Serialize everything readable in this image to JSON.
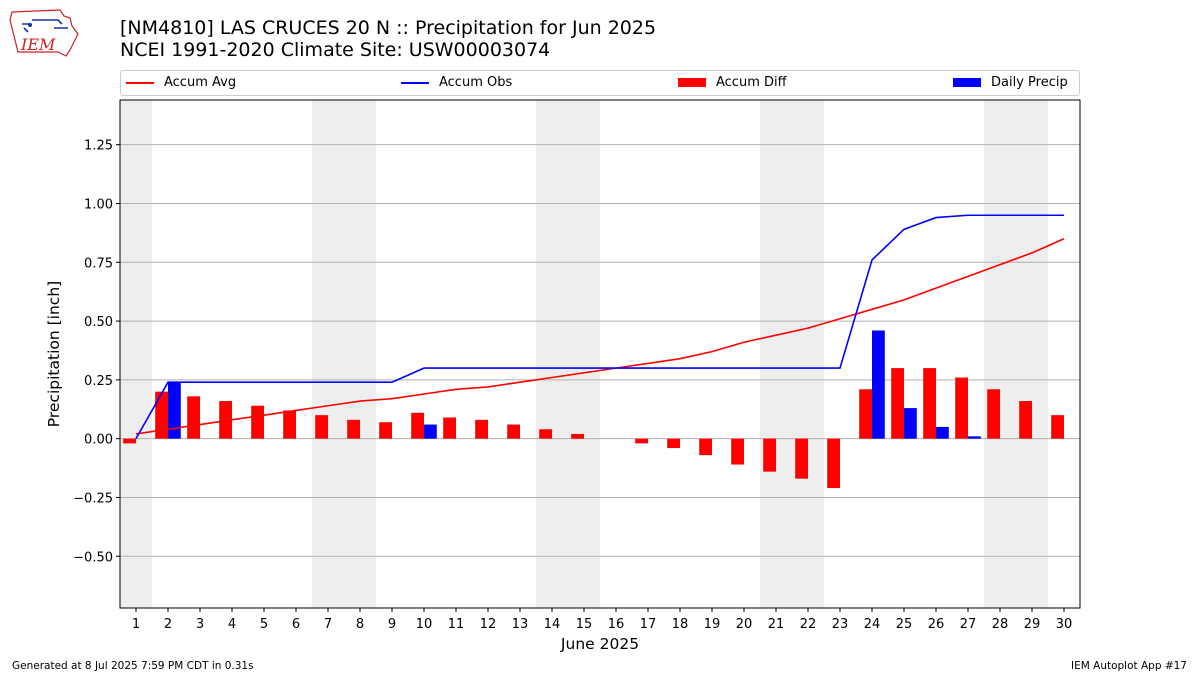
{
  "title_line1": "[NM4810] LAS CRUCES 20 N :: Precipitation for Jun 2025",
  "title_line2": "NCEI 1991-2020 Climate Site: USW00003074",
  "logo_text": "IEM",
  "legend": [
    {
      "label": "Accum Avg",
      "kind": "line",
      "color": "#ff0000"
    },
    {
      "label": "Accum Obs",
      "kind": "line",
      "color": "#0000ff"
    },
    {
      "label": "Accum Diff",
      "kind": "bar",
      "color": "#ff0000"
    },
    {
      "label": "Daily Precip",
      "kind": "bar",
      "color": "#0000ff"
    }
  ],
  "footer_left": "Generated at 8 Jul 2025 7:59 PM CDT in 0.31s",
  "footer_right": "IEM Autoplot App #17",
  "chart_data": {
    "type": "bar",
    "xlabel": "June 2025",
    "ylabel": "Precipitation [inch]",
    "x": [
      1,
      2,
      3,
      4,
      5,
      6,
      7,
      8,
      9,
      10,
      11,
      12,
      13,
      14,
      15,
      16,
      17,
      18,
      19,
      20,
      21,
      22,
      23,
      24,
      25,
      26,
      27,
      28,
      29,
      30
    ],
    "xlim": [
      0.5,
      30.5
    ],
    "ylim": [
      -0.72,
      1.44
    ],
    "yticks": [
      -0.5,
      -0.25,
      0.0,
      0.25,
      0.5,
      0.75,
      1.0,
      1.25
    ],
    "ytick_labels": [
      "−0.50",
      "−0.25",
      "0.00",
      "0.25",
      "0.50",
      "0.75",
      "1.00",
      "1.25"
    ],
    "grid": "horizontal",
    "weekend_shading": [
      [
        0.5,
        1.5
      ],
      [
        6.5,
        8.5
      ],
      [
        13.5,
        15.5
      ],
      [
        20.5,
        22.5
      ],
      [
        27.5,
        29.5
      ]
    ],
    "shading_color": "#eeeeee",
    "series": [
      {
        "name": "Accum Avg",
        "kind": "line",
        "color": "#ff0000",
        "values": [
          0.02,
          0.04,
          0.06,
          0.08,
          0.1,
          0.12,
          0.14,
          0.16,
          0.17,
          0.19,
          0.21,
          0.22,
          0.24,
          0.26,
          0.28,
          0.3,
          0.32,
          0.34,
          0.37,
          0.41,
          0.44,
          0.47,
          0.51,
          0.55,
          0.59,
          0.64,
          0.69,
          0.74,
          0.79,
          0.85
        ]
      },
      {
        "name": "Accum Obs",
        "kind": "line",
        "color": "#0000ff",
        "values": [
          0.0,
          0.24,
          0.24,
          0.24,
          0.24,
          0.24,
          0.24,
          0.24,
          0.24,
          0.3,
          0.3,
          0.3,
          0.3,
          0.3,
          0.3,
          0.3,
          0.3,
          0.3,
          0.3,
          0.3,
          0.3,
          0.3,
          0.3,
          0.76,
          0.89,
          0.94,
          0.95,
          0.95,
          0.95,
          0.95
        ]
      },
      {
        "name": "Accum Diff",
        "kind": "bar",
        "color": "#ff0000",
        "values": [
          -0.02,
          0.2,
          0.18,
          0.16,
          0.14,
          0.12,
          0.1,
          0.08,
          0.07,
          0.11,
          0.09,
          0.08,
          0.06,
          0.04,
          0.02,
          0.0,
          -0.02,
          -0.04,
          -0.07,
          -0.11,
          -0.14,
          -0.17,
          -0.21,
          0.21,
          0.3,
          0.3,
          0.26,
          0.21,
          0.16,
          0.1
        ]
      },
      {
        "name": "Daily Precip",
        "kind": "bar",
        "color": "#0000ff",
        "values": [
          0,
          0.24,
          0,
          0,
          0,
          0,
          0,
          0,
          0,
          0.06,
          0,
          0,
          0,
          0,
          0,
          0,
          0,
          0,
          0,
          0,
          0,
          0,
          0,
          0.46,
          0.13,
          0.05,
          0.01,
          0,
          0,
          0
        ]
      }
    ]
  }
}
